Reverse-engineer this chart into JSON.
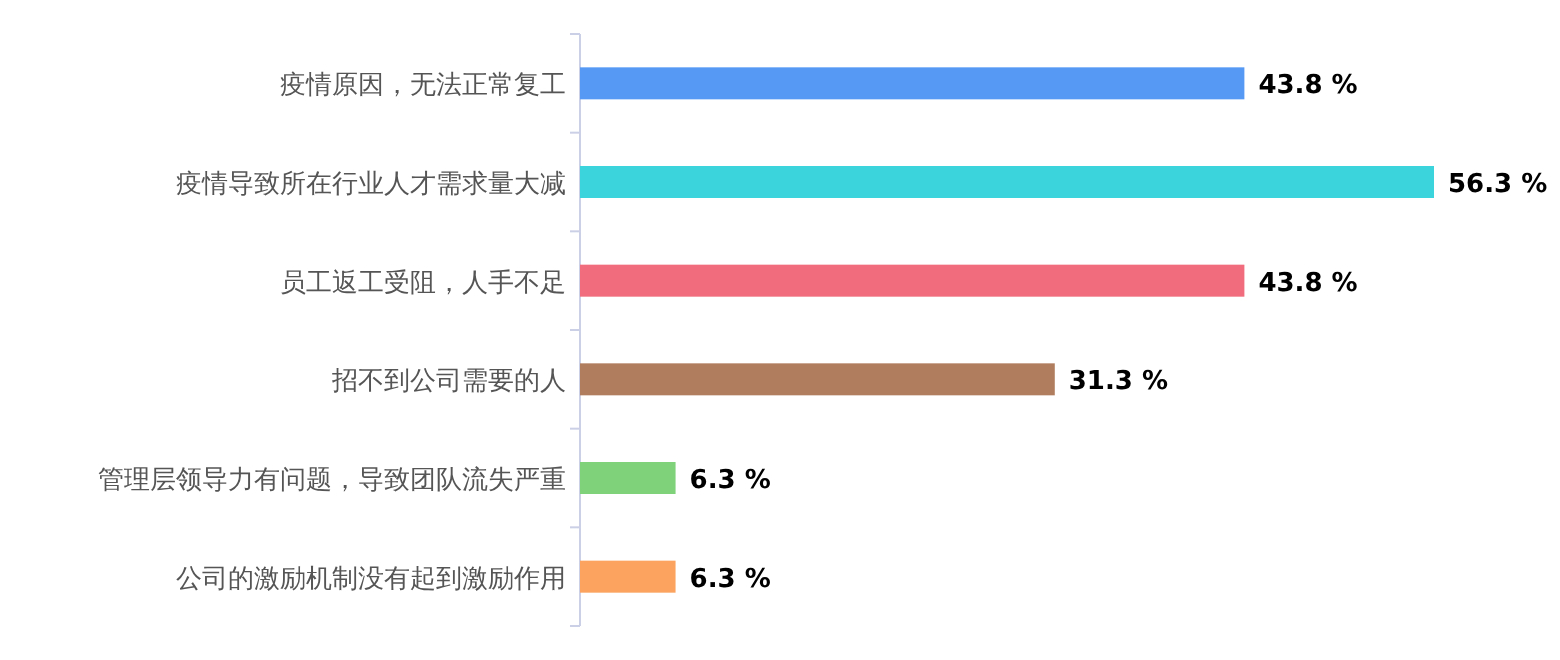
{
  "chart_data": {
    "type": "bar",
    "orientation": "horizontal",
    "categories": [
      "疫情原因，无法正常复工",
      "疫情导致所在行业人才需求量大减",
      "员工返工受阻，人手不足",
      "招不到公司需要的人",
      "管理层领导力有问题，导致团队流失严重",
      "公司的激励机制没有起到激励作用"
    ],
    "values": [
      43.8,
      56.3,
      43.8,
      31.3,
      6.3,
      6.3
    ],
    "colors": [
      "#5599f5",
      "#3bd3dc",
      "#f16d7d",
      "#b07e5e",
      "#7fd27a",
      "#fba35f"
    ],
    "value_labels": [
      "43.8 %",
      "56.3 %",
      "43.8 %",
      "31.3 %",
      "6.3 %",
      "6.3 %"
    ],
    "grid": false
  }
}
